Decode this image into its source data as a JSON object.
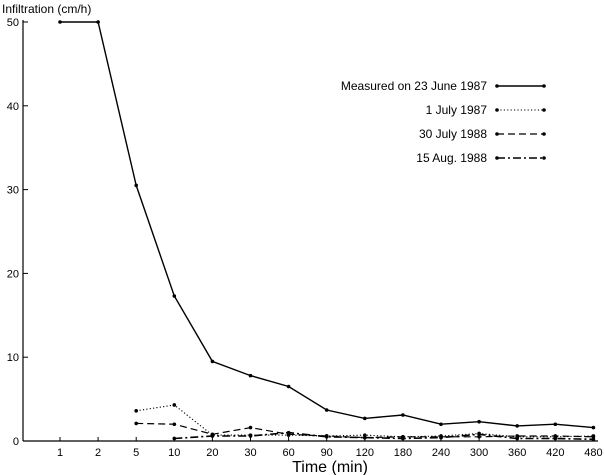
{
  "chart_data": {
    "type": "line",
    "title": "",
    "xlabel": "Time (min)",
    "ylabel": "Infiltration (cm/h)",
    "categories": [
      "1",
      "2",
      "5",
      "10",
      "20",
      "30",
      "60",
      "90",
      "120",
      "180",
      "240",
      "300",
      "360",
      "420",
      "480"
    ],
    "ylim": [
      0,
      50
    ],
    "yticks": [
      0,
      10,
      20,
      30,
      40,
      50
    ],
    "grid": false,
    "legend_position": "top-right",
    "series": [
      {
        "name": "Measured on 23 June 1987",
        "style": "solid",
        "values": [
          50,
          50,
          30.5,
          17.3,
          9.5,
          7.8,
          6.5,
          3.7,
          2.7,
          3.1,
          2.0,
          2.3,
          1.8,
          2.0,
          1.6
        ]
      },
      {
        "name": "1 July 1987",
        "style": "dotted",
        "values": [
          null,
          null,
          3.6,
          4.3,
          0.7,
          0.7,
          0.7,
          0.6,
          0.7,
          0.5,
          0.6,
          0.9,
          0.5,
          0.5,
          0.6
        ]
      },
      {
        "name": "30 July 1988",
        "style": "dashed",
        "values": [
          null,
          null,
          2.1,
          2.0,
          0.8,
          1.6,
          0.8,
          0.6,
          0.4,
          0.5,
          0.5,
          0.5,
          0.6,
          0.6,
          0.5
        ]
      },
      {
        "name": "15 Aug. 1988",
        "style": "dashdot",
        "values": [
          null,
          null,
          null,
          0.3,
          0.6,
          0.6,
          1.0,
          0.5,
          0.4,
          0.3,
          0.4,
          0.8,
          0.3,
          0.3,
          0.2
        ]
      }
    ]
  }
}
